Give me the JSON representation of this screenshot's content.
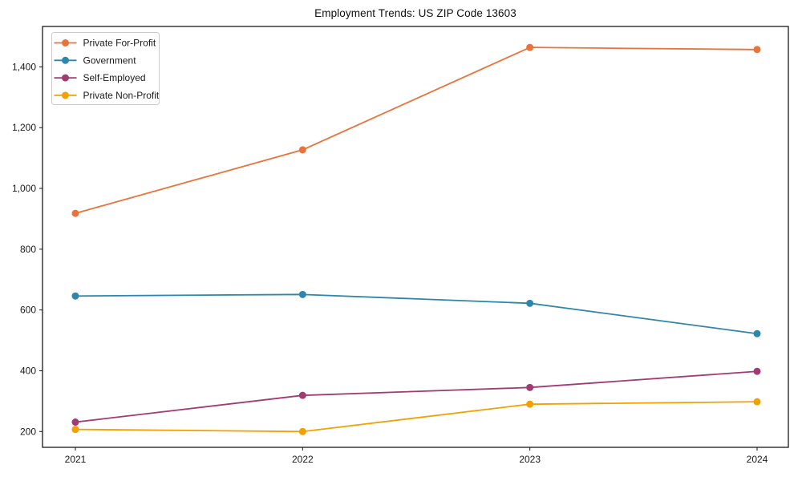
{
  "chart_data": {
    "type": "line",
    "title": "Employment Trends: US ZIP Code 13603",
    "categories": [
      "2021",
      "2022",
      "2023",
      "2024"
    ],
    "series": [
      {
        "name": "Private For-Profit",
        "color": "#E8743B",
        "values": [
          918,
          1127,
          1464,
          1457
        ]
      },
      {
        "name": "Government",
        "color": "#2E86AB",
        "values": [
          646,
          651,
          622,
          522
        ]
      },
      {
        "name": "Self-Employed",
        "color": "#A23B72",
        "values": [
          231,
          319,
          345,
          398
        ]
      },
      {
        "name": "Private Non-Profit",
        "color": "#F2A104",
        "values": [
          207,
          200,
          290,
          298
        ]
      }
    ],
    "xlabel": "",
    "ylabel": "",
    "ylim": [
      148,
      1533
    ],
    "yticks": [
      200,
      400,
      600,
      800,
      1000,
      1200,
      1400
    ],
    "ytick_labels": [
      "200",
      "400",
      "600",
      "800",
      "1,000",
      "1,200",
      "1,400"
    ],
    "legend_position": "upper left",
    "grid": false,
    "marker": "circle",
    "background_color": "#ffffff",
    "frame_color": "#1a1a1a"
  }
}
